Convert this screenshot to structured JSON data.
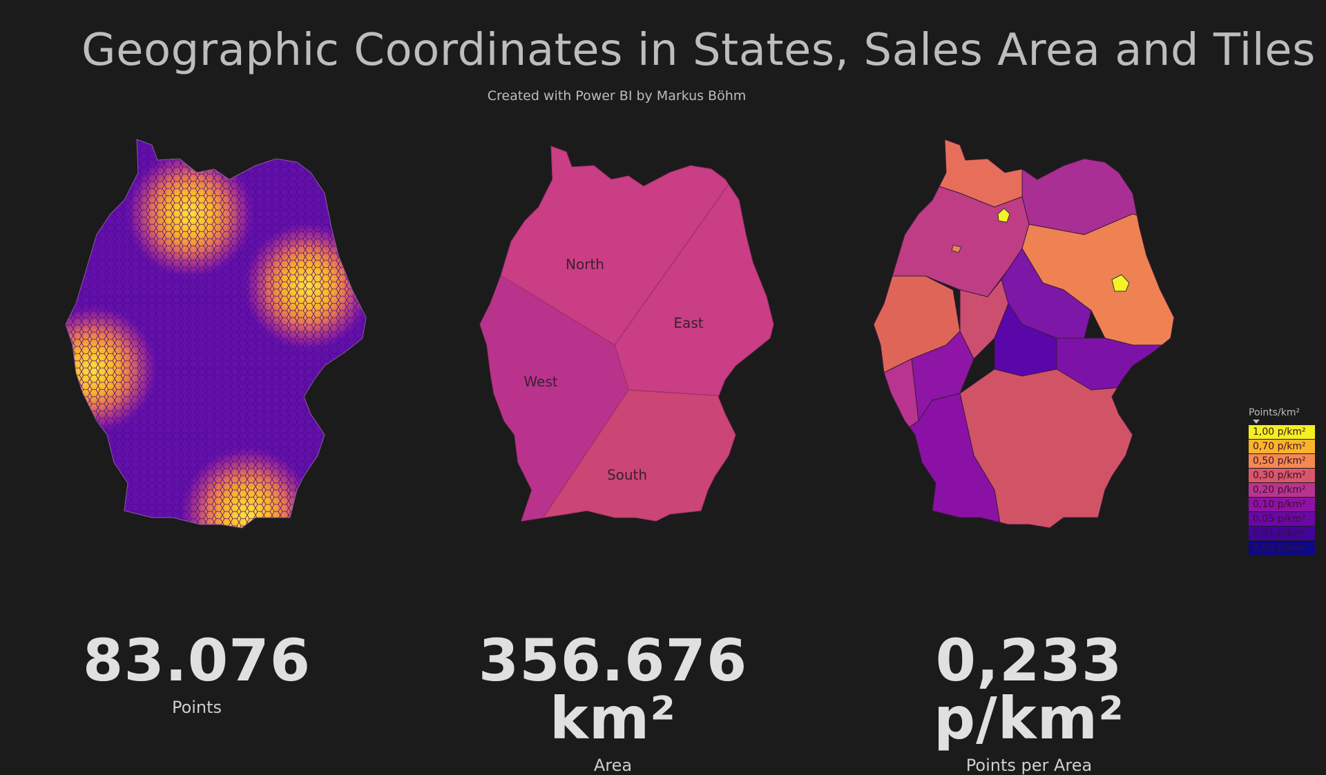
{
  "header": {
    "title": "Geographic Coordinates in States, Sales Area and Tiles",
    "subtitle": "Created with Power BI by Markus Böhm"
  },
  "maps": {
    "tiles": {
      "fill_base": "#6a12b0",
      "hot_color": "#ffd23a"
    },
    "sales_areas": {
      "regions": [
        {
          "name": "North",
          "color": "#c93e84"
        },
        {
          "name": "East",
          "color": "#c93e84"
        },
        {
          "name": "West",
          "color": "#b9338d"
        },
        {
          "name": "South",
          "color": "#cc4675"
        }
      ]
    },
    "states": {
      "highlight_color": "#f5f227"
    }
  },
  "kpis": [
    {
      "value": "83.076",
      "label": "Points"
    },
    {
      "value": "356.676 km²",
      "label": "Area"
    },
    {
      "value": "0,233 p/km²",
      "label": "Points per Area"
    }
  ],
  "legend": {
    "title": "Points/km²",
    "items": [
      {
        "label": "1,00 p/km²",
        "color": "#f4f01f"
      },
      {
        "label": "0,70 p/km²",
        "color": "#fbb32b"
      },
      {
        "label": "0,50 p/km²",
        "color": "#f48a4f"
      },
      {
        "label": "0,30 p/km²",
        "color": "#d8576a"
      },
      {
        "label": "0,20 p/km²",
        "color": "#b93490"
      },
      {
        "label": "0,10 p/km²",
        "color": "#8d12a4"
      },
      {
        "label": "0,05 p/km²",
        "color": "#6a08a6"
      },
      {
        "label": "0,01 p/km²",
        "color": "#40049a"
      },
      {
        "label": "0,00 p/km²",
        "color": "#0d0887"
      }
    ]
  }
}
